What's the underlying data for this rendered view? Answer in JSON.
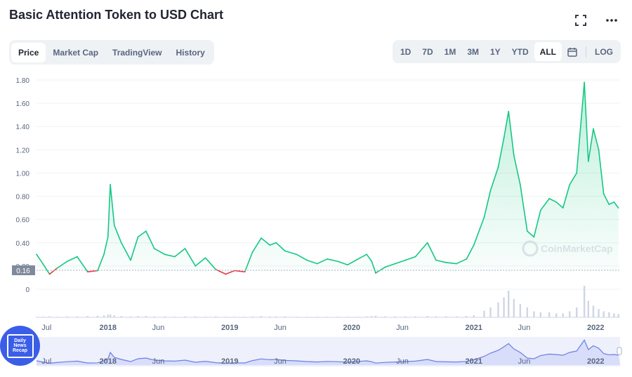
{
  "title": "Basic Attention Token to USD Chart",
  "tabs": [
    "Price",
    "Market Cap",
    "TradingView",
    "History"
  ],
  "active_tab": "Price",
  "ranges": [
    "1D",
    "7D",
    "1M",
    "3M",
    "1Y",
    "YTD",
    "ALL"
  ],
  "active_range": "ALL",
  "log_label": "LOG",
  "watermark": "CoinMarketCap",
  "badge_lines": [
    "Daily",
    "News",
    "Recap"
  ],
  "colors": {
    "up": "#16c784",
    "down": "#ea3943",
    "accent": "#3861fb",
    "nav": "#6b7fe3"
  },
  "icons": {
    "fullscreen": "fullscreen-icon",
    "more": "more-icon",
    "calendar": "calendar-icon"
  },
  "chart_data": {
    "type": "line",
    "x": [
      "2017-06-01",
      "2017-06-20",
      "2017-07-10",
      "2017-08-01",
      "2017-09-01",
      "2017-10-01",
      "2017-11-01",
      "2017-12-01",
      "2017-12-20",
      "2018-01-01",
      "2018-01-08",
      "2018-01-20",
      "2018-02-10",
      "2018-03-10",
      "2018-04-01",
      "2018-04-25",
      "2018-05-20",
      "2018-06-20",
      "2018-07-20",
      "2018-08-20",
      "2018-09-20",
      "2018-10-20",
      "2018-11-20",
      "2018-12-20",
      "2019-01-15",
      "2019-02-15",
      "2019-03-10",
      "2019-04-05",
      "2019-05-01",
      "2019-05-20",
      "2019-06-15",
      "2019-07-20",
      "2019-08-20",
      "2019-09-20",
      "2019-10-20",
      "2019-11-20",
      "2019-12-20",
      "2020-01-20",
      "2020-02-15",
      "2020-03-01",
      "2020-03-13",
      "2020-04-10",
      "2020-05-10",
      "2020-06-10",
      "2020-07-10",
      "2020-08-15",
      "2020-09-10",
      "2020-10-10",
      "2020-11-10",
      "2020-12-10",
      "2021-01-01",
      "2021-02-01",
      "2021-02-20",
      "2021-03-15",
      "2021-04-01",
      "2021-04-15",
      "2021-05-01",
      "2021-05-20",
      "2021-06-10",
      "2021-06-30",
      "2021-07-20",
      "2021-08-15",
      "2021-09-05",
      "2021-09-25",
      "2021-10-15",
      "2021-11-05",
      "2021-11-28",
      "2021-12-10",
      "2021-12-25",
      "2022-01-10",
      "2022-01-25",
      "2022-02-10",
      "2022-02-25",
      "2022-03-10"
    ],
    "y": [
      0.3,
      0.22,
      0.13,
      0.18,
      0.24,
      0.28,
      0.15,
      0.16,
      0.3,
      0.45,
      0.9,
      0.55,
      0.4,
      0.25,
      0.45,
      0.5,
      0.35,
      0.3,
      0.28,
      0.35,
      0.2,
      0.27,
      0.17,
      0.13,
      0.16,
      0.15,
      0.32,
      0.44,
      0.38,
      0.4,
      0.33,
      0.3,
      0.25,
      0.22,
      0.26,
      0.24,
      0.21,
      0.26,
      0.3,
      0.24,
      0.14,
      0.19,
      0.22,
      0.25,
      0.28,
      0.4,
      0.25,
      0.23,
      0.22,
      0.26,
      0.38,
      0.62,
      0.85,
      1.05,
      1.3,
      1.53,
      1.15,
      0.9,
      0.5,
      0.45,
      0.68,
      0.78,
      0.75,
      0.7,
      0.9,
      1.0,
      1.78,
      1.1,
      1.38,
      1.2,
      0.82,
      0.73,
      0.75,
      0.7
    ],
    "baseline": 0.16,
    "ylim": [
      0,
      1.8
    ],
    "yticks": [
      "1.80",
      "1.60",
      "1.40",
      "1.20",
      "1.00",
      "0.80",
      "0.60",
      "0.40",
      "0.20",
      "0"
    ],
    "xticks": [
      "Jul",
      "2018",
      "Jun",
      "2019",
      "Jun",
      "2020",
      "Jun",
      "2021",
      "Jun",
      "2022"
    ],
    "baseline_label": "0.16",
    "volume": [
      2,
      2,
      3,
      2,
      3,
      3,
      4,
      5,
      6,
      8,
      9,
      6,
      4,
      3,
      4,
      4,
      3,
      3,
      2,
      3,
      3,
      2,
      3,
      2,
      2,
      2,
      3,
      4,
      3,
      3,
      3,
      2,
      2,
      2,
      2,
      2,
      2,
      2,
      3,
      4,
      5,
      3,
      3,
      3,
      3,
      4,
      3,
      3,
      3,
      4,
      6,
      20,
      30,
      45,
      60,
      80,
      55,
      40,
      30,
      18,
      15,
      15,
      12,
      12,
      18,
      30,
      95,
      50,
      35,
      25,
      18,
      15,
      12,
      10
    ],
    "grid": true
  }
}
